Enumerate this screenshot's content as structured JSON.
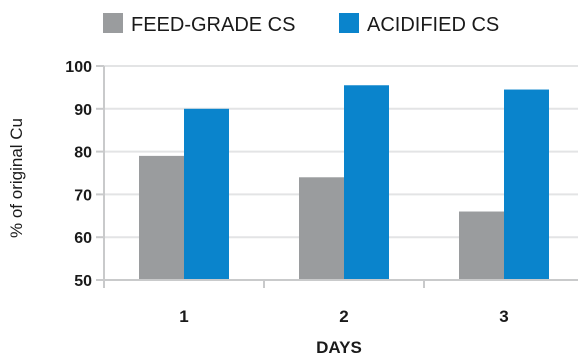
{
  "chart_data": {
    "type": "bar",
    "categories": [
      "1",
      "2",
      "3"
    ],
    "series": [
      {
        "name": "FEED-GRADE CS",
        "values": [
          79,
          74,
          66
        ],
        "color": "#9a9c9e"
      },
      {
        "name": "ACIDIFIED CS",
        "values": [
          90,
          95.5,
          94.5
        ],
        "color": "#0a84cc"
      }
    ],
    "xlabel": "DAYS",
    "ylabel": "% of original Cu",
    "ylim": [
      50,
      100
    ],
    "yticks": [
      50,
      60,
      70,
      80,
      90,
      100
    ],
    "grid": true,
    "legend_position": "top"
  }
}
